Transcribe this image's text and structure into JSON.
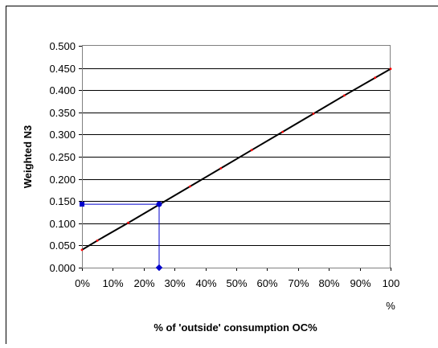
{
  "chart_data": {
    "type": "line",
    "title": "",
    "xlabel": "% of 'outside' consumption OC%",
    "ylabel": "Weighted N3",
    "x_tick_labels": [
      "0%",
      "10%",
      "20%",
      "30%",
      "40%",
      "50%",
      "60%",
      "70%",
      "80%",
      "90%",
      "100"
    ],
    "x_unit_label": "%",
    "y_tick_labels": [
      "0.000",
      "0.050",
      "0.100",
      "0.150",
      "0.200",
      "0.250",
      "0.300",
      "0.350",
      "0.400",
      "0.450",
      "0.500"
    ],
    "xlim": [
      0,
      100
    ],
    "ylim": [
      0,
      0.5
    ],
    "grid": "horizontal",
    "legend": "none",
    "series": [
      {
        "color": "#000000",
        "marker_color": "#ff0000",
        "x": [
          0,
          5,
          15,
          25,
          35,
          45,
          55,
          65,
          75,
          85,
          95,
          100
        ],
        "y": [
          0.04,
          0.061,
          0.101,
          0.142,
          0.183,
          0.224,
          0.265,
          0.306,
          0.347,
          0.388,
          0.428,
          0.448
        ]
      }
    ],
    "annotation": {
      "color": "#0000cc",
      "x": 25,
      "y": 0.143
    }
  }
}
